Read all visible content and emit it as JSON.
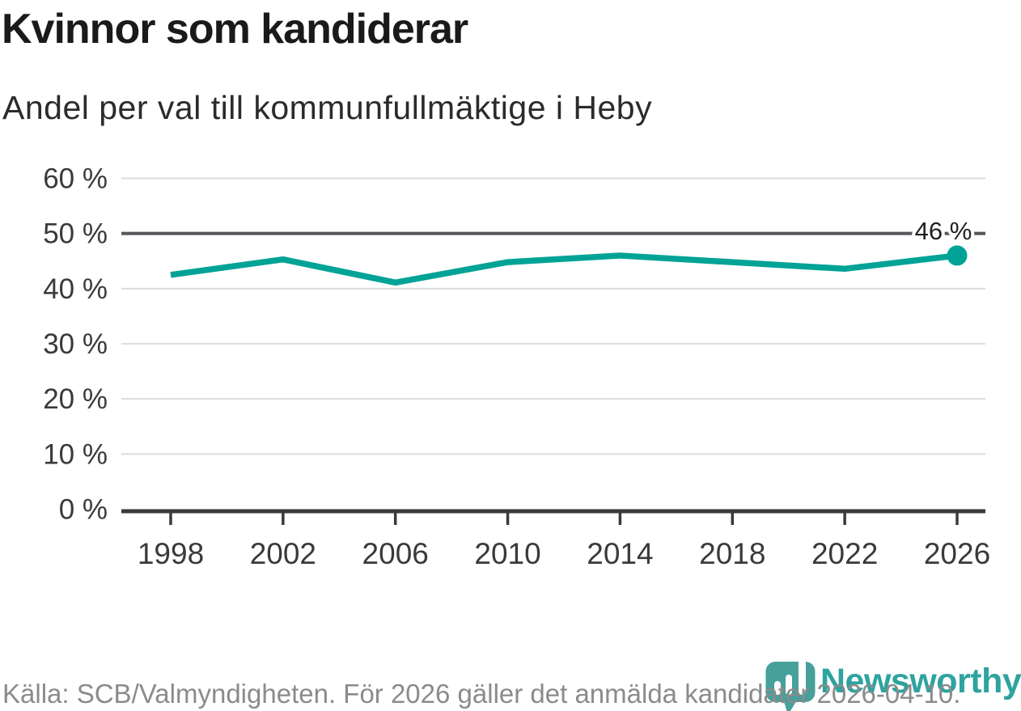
{
  "title": "Kvinnor som kandiderar",
  "subtitle": "Andel per val till kommunfullmäktige i Heby",
  "chart_data": {
    "type": "line",
    "title": "Kvinnor som kandiderar",
    "subtitle": "Andel per val till kommunfullmäktige i Heby",
    "x": [
      1998,
      2002,
      2006,
      2010,
      2014,
      2018,
      2022,
      2026
    ],
    "values": [
      42.5,
      45.3,
      41.1,
      44.8,
      46,
      44.8,
      43.6,
      46
    ],
    "unit": "%",
    "ylim": [
      0,
      60
    ],
    "yticks": [
      {
        "v": 0,
        "label": "0 %"
      },
      {
        "v": 10,
        "label": "10 %"
      },
      {
        "v": 20,
        "label": "20 %"
      },
      {
        "v": 30,
        "label": "30 %"
      },
      {
        "v": 40,
        "label": "40 %"
      },
      {
        "v": 50,
        "label": "50 %"
      },
      {
        "v": 60,
        "label": "60 %"
      }
    ],
    "xticks": [
      {
        "v": 1998,
        "label": "1998"
      },
      {
        "v": 2002,
        "label": "2002"
      },
      {
        "v": 2006,
        "label": "2006"
      },
      {
        "v": 2010,
        "label": "2010"
      },
      {
        "v": 2014,
        "label": "2014"
      },
      {
        "v": 2018,
        "label": "2018"
      },
      {
        "v": 2022,
        "label": "2022"
      },
      {
        "v": 2026,
        "label": "2026"
      }
    ],
    "highlight_gridline": 50,
    "end_label": "46 %",
    "grid": "horizontal",
    "legend": "none"
  },
  "footer": {
    "source": "Källa: SCB/Valmyndigheten. För 2026 gäller det anmälda kandidater 2026-04-10.",
    "brand": "Newsworthy"
  },
  "colors": {
    "accent": "#00a396",
    "grid": "#dcdcdc",
    "grid_highlight": "#55565a",
    "axis": "#3a3a3c",
    "title_text": "#1a1a1a",
    "tick_text": "#3a3a3c",
    "muted_text": "#8b8b8b",
    "brand_text": "#2ea3a0",
    "brand_pin": "#48a09b"
  }
}
